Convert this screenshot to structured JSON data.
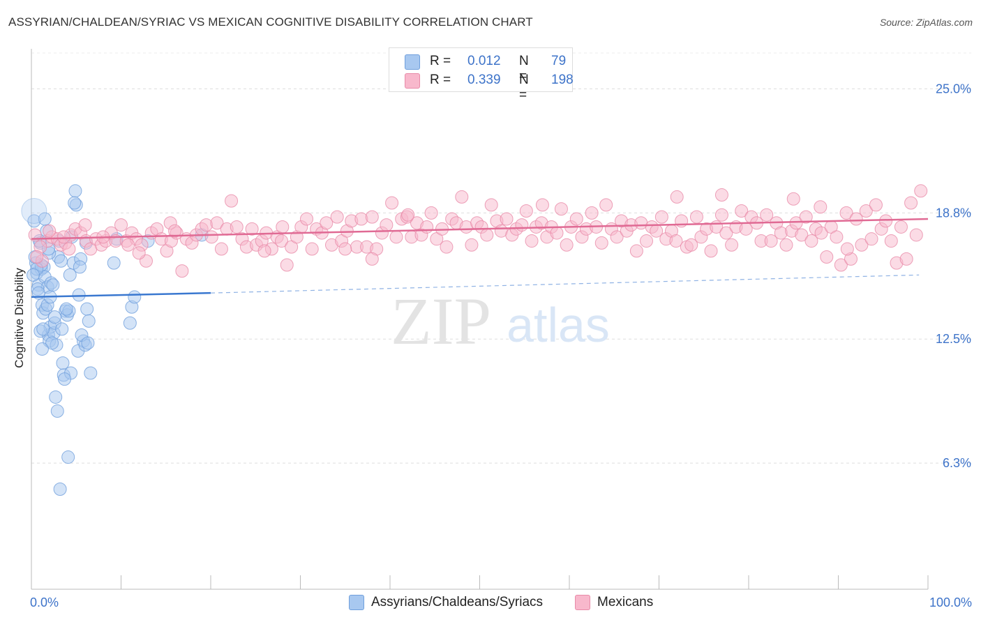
{
  "title": "ASSYRIAN/CHALDEAN/SYRIAC VS MEXICAN COGNITIVE DISABILITY CORRELATION CHART",
  "source": "Source: ZipAtlas.com",
  "watermark": {
    "zip": "ZIP",
    "atlas": "atlas"
  },
  "legend": {
    "rows": [
      {
        "r_label": "R =",
        "r_value": "0.012",
        "n_label": "N =",
        "n_value": "79",
        "color": "#a8c8f0",
        "border": "#6f9fdc"
      },
      {
        "r_label": "R =",
        "r_value": "0.339",
        "n_label": "N =",
        "n_value": "198",
        "color": "#f8b8cc",
        "border": "#e88aa8"
      }
    ]
  },
  "chart_data": {
    "type": "scatter",
    "title": "ASSYRIAN/CHALDEAN/SYRIAC VS MEXICAN COGNITIVE DISABILITY CORRELATION CHART",
    "xlabel": "",
    "ylabel": "Cognitive Disability",
    "xlim": [
      0,
      100
    ],
    "ylim": [
      0,
      27
    ],
    "x_tick_labels": [
      "0.0%",
      "100.0%"
    ],
    "y_ticks": [
      6.3,
      12.5,
      18.8,
      25.0
    ],
    "y_tick_labels": [
      "6.3%",
      "12.5%",
      "18.8%",
      "25.0%"
    ],
    "grid": true,
    "series": [
      {
        "name": "Assyrians/Chaldeans/Syriacs",
        "color": "#a8c8f0",
        "stroke": "#6f9fdc",
        "line_color": "#3a78d0",
        "trend": {
          "x0": 0,
          "y0": 14.6,
          "x1": 20,
          "y1": 14.8,
          "dash_to_x": 99,
          "dash_to_y": 15.7
        },
        "points": [
          [
            0.3,
            18.4
          ],
          [
            0.5,
            16.3
          ],
          [
            0.6,
            15.8
          ],
          [
            0.8,
            15.2
          ],
          [
            1.0,
            17.3
          ],
          [
            1.1,
            16.0
          ],
          [
            1.2,
            14.2
          ],
          [
            1.3,
            13.8
          ],
          [
            1.4,
            16.1
          ],
          [
            1.5,
            15.6
          ],
          [
            1.7,
            17.9
          ],
          [
            1.8,
            15.1
          ],
          [
            1.9,
            12.7
          ],
          [
            2.0,
            12.4
          ],
          [
            2.1,
            13.1
          ],
          [
            2.2,
            15.3
          ],
          [
            2.4,
            15.2
          ],
          [
            2.5,
            12.8
          ],
          [
            2.6,
            13.3
          ],
          [
            2.8,
            12.2
          ],
          [
            3.0,
            16.6
          ],
          [
            3.1,
            17.4
          ],
          [
            3.3,
            16.4
          ],
          [
            3.5,
            11.3
          ],
          [
            3.6,
            10.7
          ],
          [
            3.8,
            13.9
          ],
          [
            4.0,
            13.7
          ],
          [
            4.2,
            13.9
          ],
          [
            4.4,
            10.8
          ],
          [
            4.5,
            17.6
          ],
          [
            4.7,
            16.3
          ],
          [
            4.9,
            19.9
          ],
          [
            5.2,
            11.9
          ],
          [
            5.3,
            14.7
          ],
          [
            5.5,
            16.5
          ],
          [
            5.8,
            12.4
          ],
          [
            6.0,
            12.2
          ],
          [
            6.2,
            14.0
          ],
          [
            6.4,
            13.4
          ],
          [
            6.6,
            10.8
          ],
          [
            1.1,
            16.2
          ],
          [
            0.9,
            17.4
          ],
          [
            1.6,
            14.0
          ],
          [
            2.7,
            9.6
          ],
          [
            2.9,
            8.9
          ],
          [
            4.1,
            6.6
          ],
          [
            3.2,
            5.0
          ],
          [
            5.0,
            19.2
          ],
          [
            4.8,
            19.3
          ],
          [
            1.5,
            18.5
          ],
          [
            0.4,
            16.6
          ],
          [
            0.7,
            15.0
          ],
          [
            1.0,
            12.9
          ],
          [
            1.8,
            14.2
          ],
          [
            2.3,
            12.3
          ],
          [
            3.7,
            10.5
          ],
          [
            5.6,
            12.7
          ],
          [
            6.1,
            17.3
          ],
          [
            9.2,
            16.3
          ],
          [
            9.5,
            17.5
          ],
          [
            11.2,
            14.1
          ],
          [
            11.5,
            14.6
          ],
          [
            11.0,
            13.3
          ],
          [
            13.0,
            17.4
          ],
          [
            19.0,
            17.7
          ],
          [
            2.0,
            16.8
          ],
          [
            1.3,
            13.0
          ],
          [
            0.6,
            16.0
          ],
          [
            0.2,
            15.7
          ],
          [
            1.9,
            17.0
          ],
          [
            2.6,
            13.6
          ],
          [
            3.4,
            13.0
          ],
          [
            1.2,
            12.0
          ],
          [
            0.8,
            14.8
          ],
          [
            2.1,
            14.6
          ],
          [
            4.3,
            15.7
          ],
          [
            5.4,
            16.1
          ],
          [
            6.3,
            12.3
          ],
          [
            3.9,
            14.0
          ]
        ]
      },
      {
        "name": "Mexicans",
        "color": "#f8b8cc",
        "stroke": "#e88aa8",
        "line_color": "#e06a94",
        "trend": {
          "x0": 0,
          "y0": 17.5,
          "x1": 100,
          "y1": 18.5
        },
        "points": [
          [
            0.4,
            17.7
          ],
          [
            1.2,
            16.4
          ],
          [
            1.8,
            17.4
          ],
          [
            2.3,
            17.6
          ],
          [
            2.9,
            17.5
          ],
          [
            3.3,
            17.2
          ],
          [
            3.8,
            17.3
          ],
          [
            4.4,
            17.7
          ],
          [
            4.9,
            18.0
          ],
          [
            5.5,
            17.8
          ],
          [
            6.1,
            17.4
          ],
          [
            6.6,
            17.0
          ],
          [
            7.2,
            17.5
          ],
          [
            7.8,
            17.2
          ],
          [
            8.3,
            17.4
          ],
          [
            8.9,
            17.8
          ],
          [
            9.4,
            17.4
          ],
          [
            10.0,
            18.2
          ],
          [
            10.6,
            17.4
          ],
          [
            11.2,
            17.8
          ],
          [
            11.7,
            17.5
          ],
          [
            12.3,
            17.2
          ],
          [
            12.8,
            16.4
          ],
          [
            13.4,
            17.8
          ],
          [
            14.0,
            18.0
          ],
          [
            14.5,
            17.5
          ],
          [
            15.1,
            16.9
          ],
          [
            15.6,
            17.4
          ],
          [
            16.2,
            17.8
          ],
          [
            16.8,
            15.9
          ],
          [
            17.3,
            17.5
          ],
          [
            17.9,
            17.3
          ],
          [
            18.4,
            17.7
          ],
          [
            19.0,
            18.0
          ],
          [
            19.5,
            18.2
          ],
          [
            20.1,
            17.6
          ],
          [
            20.7,
            18.3
          ],
          [
            21.2,
            17.0
          ],
          [
            21.8,
            18.0
          ],
          [
            22.3,
            19.4
          ],
          [
            22.9,
            18.1
          ],
          [
            23.5,
            17.5
          ],
          [
            24.0,
            17.1
          ],
          [
            24.6,
            18.0
          ],
          [
            25.1,
            17.2
          ],
          [
            25.7,
            17.4
          ],
          [
            26.2,
            17.8
          ],
          [
            26.8,
            17.0
          ],
          [
            27.4,
            17.6
          ],
          [
            27.9,
            17.4
          ],
          [
            28.5,
            16.2
          ],
          [
            29.0,
            17.1
          ],
          [
            29.6,
            17.6
          ],
          [
            30.1,
            18.1
          ],
          [
            30.7,
            18.5
          ],
          [
            31.3,
            17.0
          ],
          [
            31.8,
            18.0
          ],
          [
            32.4,
            17.8
          ],
          [
            32.9,
            18.3
          ],
          [
            33.5,
            17.2
          ],
          [
            34.1,
            18.6
          ],
          [
            34.6,
            17.4
          ],
          [
            35.2,
            17.9
          ],
          [
            35.7,
            18.4
          ],
          [
            36.3,
            17.1
          ],
          [
            36.8,
            18.5
          ],
          [
            37.4,
            17.1
          ],
          [
            38.0,
            18.6
          ],
          [
            38.5,
            17.0
          ],
          [
            39.1,
            17.8
          ],
          [
            39.6,
            18.2
          ],
          [
            40.2,
            19.3
          ],
          [
            40.7,
            17.6
          ],
          [
            41.3,
            18.5
          ],
          [
            41.9,
            18.6
          ],
          [
            42.4,
            17.6
          ],
          [
            43.0,
            18.3
          ],
          [
            43.5,
            17.7
          ],
          [
            44.1,
            18.1
          ],
          [
            44.6,
            18.8
          ],
          [
            45.2,
            17.5
          ],
          [
            45.8,
            18.0
          ],
          [
            46.3,
            17.1
          ],
          [
            46.9,
            18.5
          ],
          [
            47.4,
            18.3
          ],
          [
            48.0,
            19.6
          ],
          [
            48.5,
            18.1
          ],
          [
            49.1,
            17.2
          ],
          [
            49.7,
            18.3
          ],
          [
            50.2,
            18.1
          ],
          [
            50.8,
            17.7
          ],
          [
            51.3,
            19.2
          ],
          [
            51.9,
            18.4
          ],
          [
            52.4,
            17.9
          ],
          [
            53.0,
            18.5
          ],
          [
            53.6,
            17.7
          ],
          [
            54.1,
            18.0
          ],
          [
            54.7,
            18.2
          ],
          [
            55.2,
            18.9
          ],
          [
            55.8,
            17.4
          ],
          [
            56.3,
            18.1
          ],
          [
            56.9,
            18.3
          ],
          [
            57.5,
            17.6
          ],
          [
            58.0,
            18.1
          ],
          [
            58.6,
            17.8
          ],
          [
            59.1,
            19.0
          ],
          [
            59.7,
            17.2
          ],
          [
            60.2,
            18.1
          ],
          [
            60.8,
            18.5
          ],
          [
            61.4,
            17.6
          ],
          [
            61.9,
            18.0
          ],
          [
            62.5,
            18.8
          ],
          [
            63.0,
            18.1
          ],
          [
            63.6,
            17.3
          ],
          [
            64.1,
            19.2
          ],
          [
            64.7,
            18.0
          ],
          [
            65.3,
            17.6
          ],
          [
            65.8,
            18.4
          ],
          [
            66.4,
            17.9
          ],
          [
            66.9,
            18.2
          ],
          [
            67.5,
            16.9
          ],
          [
            68.0,
            18.3
          ],
          [
            68.6,
            17.4
          ],
          [
            69.2,
            18.1
          ],
          [
            69.7,
            17.9
          ],
          [
            70.3,
            18.6
          ],
          [
            70.8,
            17.5
          ],
          [
            71.4,
            17.9
          ],
          [
            71.9,
            17.4
          ],
          [
            72.5,
            18.4
          ],
          [
            73.1,
            17.1
          ],
          [
            73.6,
            17.2
          ],
          [
            74.2,
            18.6
          ],
          [
            74.7,
            17.6
          ],
          [
            75.3,
            18.0
          ],
          [
            75.8,
            16.9
          ],
          [
            76.4,
            18.1
          ],
          [
            77.0,
            18.7
          ],
          [
            77.5,
            17.8
          ],
          [
            78.1,
            17.2
          ],
          [
            78.6,
            18.1
          ],
          [
            79.2,
            18.9
          ],
          [
            79.7,
            18.0
          ],
          [
            80.3,
            18.6
          ],
          [
            80.9,
            18.3
          ],
          [
            81.4,
            17.4
          ],
          [
            82.0,
            18.7
          ],
          [
            82.5,
            17.4
          ],
          [
            83.1,
            18.3
          ],
          [
            83.6,
            17.8
          ],
          [
            84.2,
            17.2
          ],
          [
            84.8,
            17.9
          ],
          [
            85.3,
            18.3
          ],
          [
            85.9,
            17.7
          ],
          [
            86.4,
            18.6
          ],
          [
            87.0,
            17.4
          ],
          [
            87.5,
            18.0
          ],
          [
            88.1,
            17.8
          ],
          [
            88.7,
            16.6
          ],
          [
            89.2,
            18.1
          ],
          [
            89.8,
            17.6
          ],
          [
            90.3,
            16.2
          ],
          [
            90.9,
            18.8
          ],
          [
            91.4,
            16.5
          ],
          [
            92.0,
            18.5
          ],
          [
            92.6,
            17.2
          ],
          [
            93.1,
            18.9
          ],
          [
            93.7,
            17.5
          ],
          [
            94.2,
            19.2
          ],
          [
            94.8,
            18.0
          ],
          [
            95.3,
            18.4
          ],
          [
            95.9,
            17.4
          ],
          [
            96.5,
            16.3
          ],
          [
            97.0,
            18.1
          ],
          [
            97.6,
            16.5
          ],
          [
            98.1,
            19.3
          ],
          [
            98.7,
            17.7
          ],
          [
            99.2,
            19.9
          ],
          [
            91.0,
            17.0
          ],
          [
            88.0,
            19.1
          ],
          [
            85.0,
            19.5
          ],
          [
            77.0,
            19.7
          ],
          [
            72.0,
            19.6
          ],
          [
            57.0,
            19.2
          ],
          [
            42.0,
            18.7
          ],
          [
            35.0,
            17.0
          ],
          [
            28.0,
            18.1
          ],
          [
            15.5,
            18.3
          ],
          [
            10.8,
            17.2
          ],
          [
            6.0,
            18.2
          ],
          [
            3.6,
            17.6
          ],
          [
            2.0,
            17.9
          ],
          [
            1.0,
            17.1
          ],
          [
            0.6,
            16.6
          ],
          [
            4.2,
            17.0
          ],
          [
            8.0,
            17.6
          ],
          [
            12.0,
            16.8
          ],
          [
            16.0,
            17.9
          ],
          [
            26.0,
            16.9
          ],
          [
            38.0,
            16.5
          ]
        ]
      }
    ]
  }
}
